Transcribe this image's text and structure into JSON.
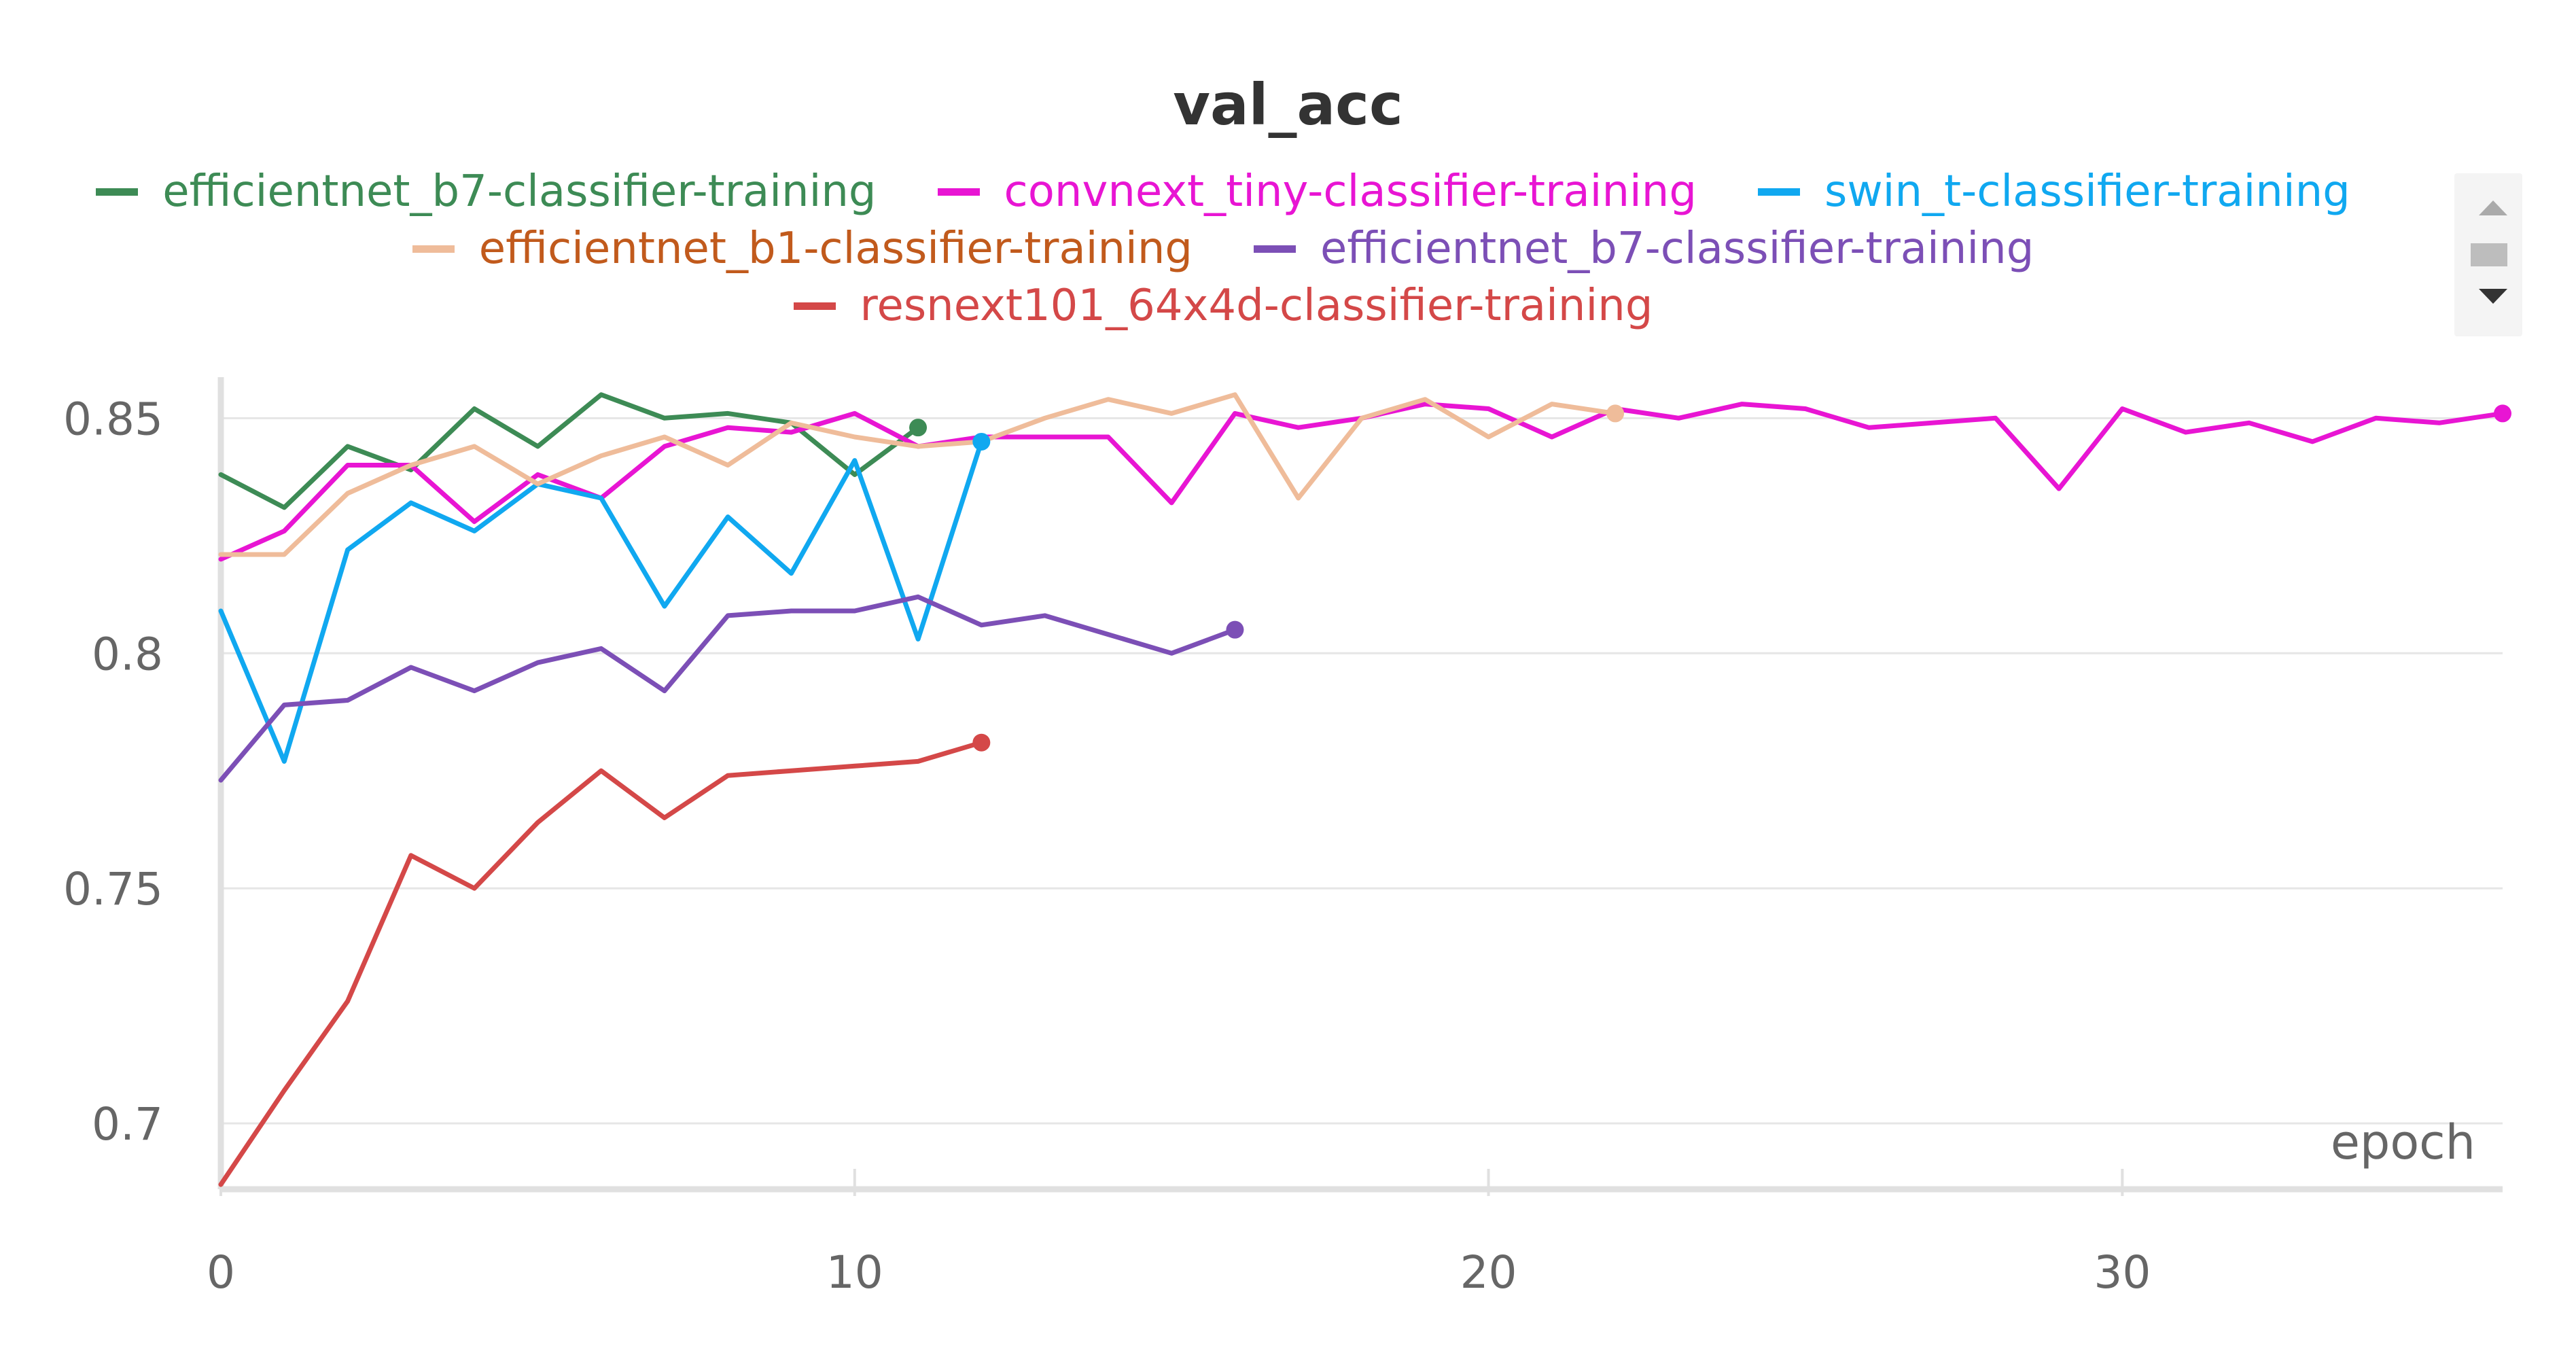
{
  "chart_data": {
    "type": "line",
    "title": "val_acc",
    "xlabel": "epoch",
    "ylabel": "",
    "xlim": [
      0,
      36
    ],
    "ylim": [
      0.686,
      0.858
    ],
    "xticks": [
      0,
      10,
      20,
      30
    ],
    "yticks": [
      0.7,
      0.75,
      0.8,
      0.85
    ],
    "ytick_labels": [
      "0.7",
      "0.75",
      "0.8",
      "0.85"
    ],
    "xtick_labels": [
      "0",
      "10",
      "20",
      "30"
    ],
    "grid": "horizontal",
    "legend_position": "top",
    "series": [
      {
        "name": "efficientnet_b7-classifier-training",
        "color": "#3d8b55",
        "legend_text_color": "#3d8b55",
        "x": [
          0,
          1,
          2,
          3,
          4,
          5,
          6,
          7,
          8,
          9,
          10,
          11
        ],
        "y": [
          0.838,
          0.831,
          0.844,
          0.839,
          0.852,
          0.844,
          0.855,
          0.85,
          0.851,
          0.849,
          0.838,
          0.848
        ]
      },
      {
        "name": "convnext_tiny-classifier-training",
        "color": "#e815d3",
        "legend_text_color": "#e815d3",
        "x": [
          0,
          1,
          2,
          3,
          4,
          5,
          6,
          7,
          8,
          9,
          10,
          11,
          12,
          13,
          14,
          15,
          16,
          17,
          18,
          19,
          20,
          21,
          22,
          23,
          24,
          25,
          26,
          27,
          28,
          29,
          30,
          31,
          32,
          33,
          34,
          35,
          36
        ],
        "y": [
          0.82,
          0.826,
          0.84,
          0.84,
          0.828,
          0.838,
          0.833,
          0.844,
          0.848,
          0.847,
          0.851,
          0.844,
          0.846,
          0.846,
          0.846,
          0.832,
          0.851,
          0.848,
          0.85,
          0.853,
          0.852,
          0.846,
          0.852,
          0.85,
          0.853,
          0.852,
          0.848,
          0.849,
          0.85,
          0.835,
          0.852,
          0.847,
          0.849,
          0.845,
          0.85,
          0.849,
          0.851
        ]
      },
      {
        "name": "swin_t-classifier-training",
        "color": "#10a8f0",
        "legend_text_color": "#10a8f0",
        "x": [
          0,
          1,
          2,
          3,
          4,
          5,
          6,
          7,
          8,
          9,
          10,
          11,
          12
        ],
        "y": [
          0.809,
          0.777,
          0.822,
          0.832,
          0.826,
          0.836,
          0.833,
          0.81,
          0.829,
          0.817,
          0.841,
          0.803,
          0.845
        ]
      },
      {
        "name": "efficientnet_b1-classifier-training",
        "color": "#efbc9a",
        "legend_text_color": "#c15a1c",
        "x": [
          0,
          1,
          2,
          3,
          4,
          5,
          6,
          7,
          8,
          9,
          10,
          11,
          12,
          13,
          14,
          15,
          16,
          17,
          18,
          19,
          20,
          21,
          22
        ],
        "y": [
          0.821,
          0.821,
          0.834,
          0.84,
          0.844,
          0.836,
          0.842,
          0.846,
          0.84,
          0.849,
          0.846,
          0.844,
          0.845,
          0.85,
          0.854,
          0.851,
          0.855,
          0.833,
          0.85,
          0.854,
          0.846,
          0.853,
          0.851
        ]
      },
      {
        "name": "efficientnet_b7-classifier-training",
        "color": "#7c4fb6",
        "legend_text_color": "#7c4fb6",
        "x": [
          0,
          1,
          2,
          3,
          4,
          5,
          6,
          7,
          8,
          9,
          10,
          11,
          12,
          13,
          14,
          15,
          16
        ],
        "y": [
          0.773,
          0.789,
          0.79,
          0.797,
          0.792,
          0.798,
          0.801,
          0.792,
          0.808,
          0.809,
          0.809,
          0.812,
          0.806,
          0.808,
          0.804,
          0.8,
          0.805
        ]
      },
      {
        "name": "resnext101_64x4d-classifier-training",
        "color": "#d44848",
        "legend_text_color": "#d44848",
        "x": [
          0,
          1,
          2,
          3,
          4,
          5,
          6,
          7,
          8,
          9,
          10,
          11,
          12
        ],
        "y": [
          0.687,
          0.707,
          0.726,
          0.757,
          0.75,
          0.764,
          0.775,
          0.765,
          0.774,
          0.775,
          0.776,
          0.777,
          0.781
        ]
      }
    ]
  },
  "legend_rows": [
    [
      0,
      1,
      2
    ],
    [
      3,
      4
    ],
    [
      5
    ]
  ]
}
